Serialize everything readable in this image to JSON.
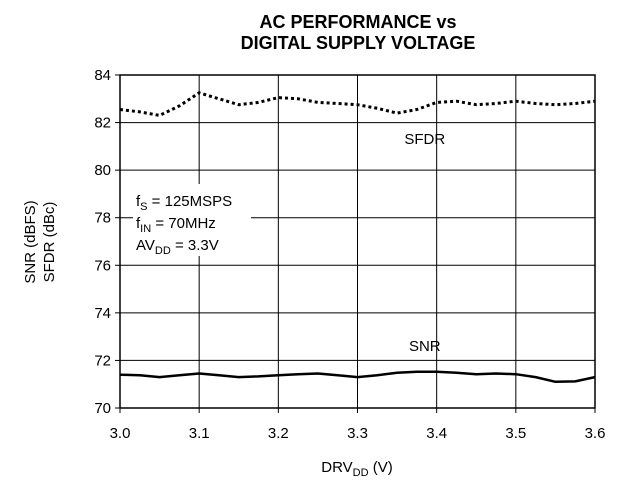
{
  "chart_data": {
    "type": "line",
    "title_line1": "AC PERFORMANCE vs",
    "title_line2": "DIGITAL SUPPLY VOLTAGE",
    "xlabel": {
      "main": "DRV",
      "sub": "DD",
      "unit": " (V)"
    },
    "ylabel_line1": "SNR (dBFS)",
    "ylabel_line2": "SFDR (dBc)",
    "xlim": [
      3.0,
      3.6
    ],
    "ylim": [
      70,
      84
    ],
    "x_ticks": [
      3.0,
      3.1,
      3.2,
      3.3,
      3.4,
      3.5,
      3.6
    ],
    "x_tick_labels": [
      "3.0",
      "3.1",
      "3.2",
      "3.3",
      "3.4",
      "3.5",
      "3.6"
    ],
    "y_ticks": [
      70,
      72,
      74,
      76,
      78,
      80,
      82,
      84
    ],
    "y_tick_labels": [
      "70",
      "72",
      "74",
      "76",
      "78",
      "80",
      "82",
      "84"
    ],
    "grid": true,
    "conditions": [
      {
        "main": "f",
        "sub": "S",
        "rest": " = 125MSPS"
      },
      {
        "main": "f",
        "sub": "IN",
        "rest": " = 70MHz"
      },
      {
        "main": "AV",
        "sub": "DD",
        "rest": " = 3.3V"
      }
    ],
    "series": [
      {
        "name": "SFDR",
        "style": "dotted",
        "color": "#000000",
        "x": [
          3.0,
          3.025,
          3.05,
          3.075,
          3.1,
          3.125,
          3.15,
          3.175,
          3.2,
          3.225,
          3.25,
          3.275,
          3.3,
          3.325,
          3.35,
          3.375,
          3.4,
          3.425,
          3.45,
          3.475,
          3.5,
          3.525,
          3.55,
          3.575,
          3.6
        ],
        "values": [
          82.55,
          82.45,
          82.3,
          82.7,
          83.25,
          83.0,
          82.75,
          82.85,
          83.05,
          83.0,
          82.85,
          82.8,
          82.75,
          82.6,
          82.4,
          82.55,
          82.85,
          82.9,
          82.75,
          82.8,
          82.9,
          82.8,
          82.75,
          82.8,
          82.9
        ]
      },
      {
        "name": "SNR",
        "style": "solid",
        "color": "#000000",
        "x": [
          3.0,
          3.025,
          3.05,
          3.075,
          3.1,
          3.125,
          3.15,
          3.175,
          3.2,
          3.225,
          3.25,
          3.275,
          3.3,
          3.325,
          3.35,
          3.375,
          3.4,
          3.425,
          3.45,
          3.475,
          3.5,
          3.525,
          3.55,
          3.575,
          3.6
        ],
        "values": [
          71.4,
          71.38,
          71.3,
          71.38,
          71.45,
          71.38,
          71.3,
          71.33,
          71.38,
          71.42,
          71.45,
          71.38,
          71.3,
          71.38,
          71.48,
          71.52,
          71.52,
          71.48,
          71.42,
          71.45,
          71.42,
          71.3,
          71.1,
          71.12,
          71.3
        ]
      }
    ],
    "series_labels": [
      {
        "name": "SFDR",
        "x": 3.385,
        "y": 81.1
      },
      {
        "name": "SNR",
        "x": 3.385,
        "y": 72.4
      }
    ]
  }
}
